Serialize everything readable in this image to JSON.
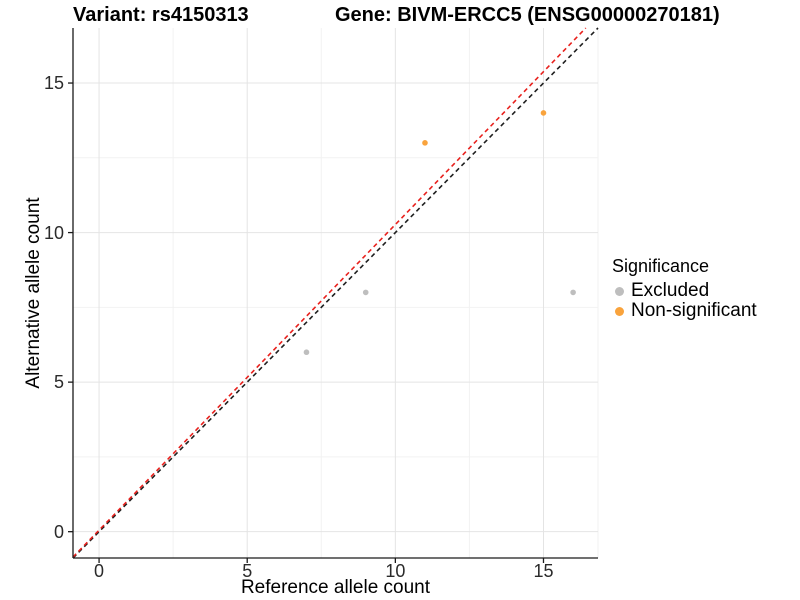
{
  "chart_data": {
    "type": "scatter",
    "titles": {
      "variant": "Variant: rs4150313",
      "gene": "Gene: BIVM-ERCC5 (ENSG00000270181)"
    },
    "xlabel": "Reference allele count",
    "ylabel": "Alternative allele count",
    "xlim": [
      -0.88,
      16.84
    ],
    "ylim": [
      -0.88,
      16.84
    ],
    "x_ticks": [
      {
        "value": 0,
        "label": "0"
      },
      {
        "value": 5,
        "label": "5"
      },
      {
        "value": 10,
        "label": "10"
      },
      {
        "value": 15,
        "label": "15"
      }
    ],
    "y_ticks": [
      {
        "value": 0,
        "label": "0"
      },
      {
        "value": 5,
        "label": "5"
      },
      {
        "value": 10,
        "label": "10"
      },
      {
        "value": 15,
        "label": "15"
      }
    ],
    "x_minor_ticks": [
      2.5,
      7.5,
      12.5
    ],
    "y_minor_ticks": [
      2.5,
      7.5,
      12.5
    ],
    "grid": "major+minor",
    "series": [
      {
        "name": "Excluded",
        "color": "#BEBEBE",
        "points": [
          [
            7,
            6
          ],
          [
            9,
            8
          ],
          [
            16,
            8
          ]
        ]
      },
      {
        "name": "Non-significant",
        "color": "#F9A33C",
        "points": [
          [
            11,
            13
          ],
          [
            15,
            14
          ]
        ]
      }
    ],
    "lines": [
      {
        "name": "identity-line",
        "color": "#1F1F1F",
        "style": "dashed",
        "slope": 1.0,
        "intercept": 0.0
      },
      {
        "name": "fit-line",
        "color": "#E8211D",
        "style": "dashed",
        "slope": 1.022,
        "intercept": 0.05
      }
    ],
    "legend": {
      "title": "Significance",
      "position": "right",
      "items": [
        {
          "label": "Excluded",
          "color": "#BEBEBE"
        },
        {
          "label": "Non-significant",
          "color": "#F9A33C"
        }
      ]
    },
    "style": {
      "background": "#FFFFFF",
      "grid_major_color": "#E4E4E4",
      "grid_minor_color": "#F2F2F2",
      "axis_color": "#1A1A1A",
      "tick_label_color": "#2B2B2B",
      "point_radius": 2.8
    }
  }
}
